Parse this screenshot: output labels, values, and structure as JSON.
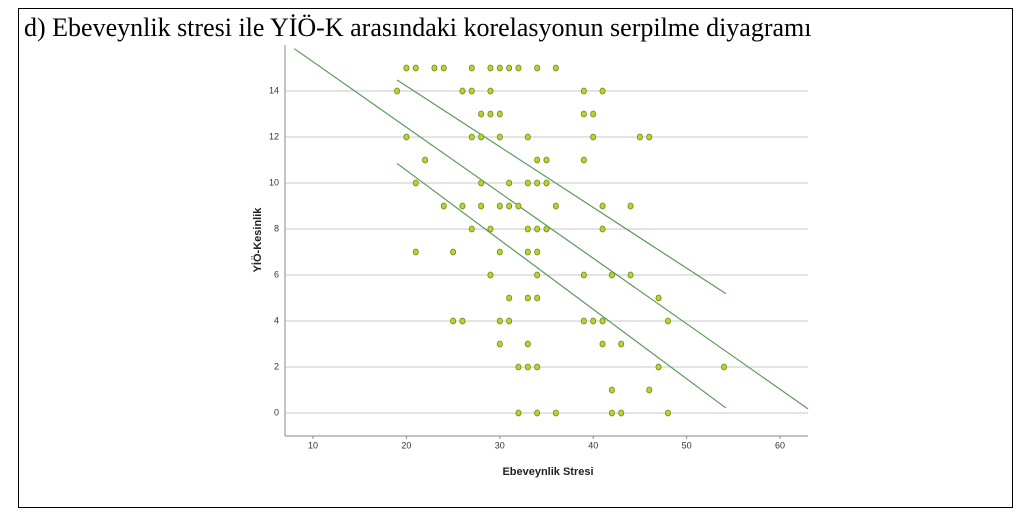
{
  "chart_data": {
    "type": "scatter",
    "title": "d) Ebeveynlik stresi ile YİÖ-K arasındaki korelasyonun serpilme diyagramı",
    "x_label": "Ebeveynlik Stresi",
    "y_label": "YİÖ-Kesinlik",
    "series": [
      {
        "color": "#b5d334",
        "x": [
          20,
          21,
          23,
          24,
          27,
          29,
          30,
          31,
          32,
          34,
          36,
          19,
          26,
          27,
          29,
          39,
          41,
          28,
          29,
          30,
          39,
          40,
          20,
          27,
          28,
          30,
          33,
          40,
          45,
          46,
          22,
          34,
          35,
          39,
          21,
          28,
          31,
          33,
          34,
          35,
          24,
          26,
          28,
          30,
          31,
          32,
          36,
          41,
          44,
          27,
          29,
          33,
          34,
          35,
          41,
          21,
          25,
          30,
          33,
          34,
          29,
          34,
          39,
          42,
          44,
          31,
          33,
          34,
          47,
          25,
          26,
          30,
          31,
          39,
          40,
          41,
          48,
          30,
          33,
          41,
          43,
          32,
          33,
          34,
          47,
          54,
          42,
          46,
          32,
          34,
          36,
          42,
          43,
          48
        ],
        "values": [
          15,
          15,
          15,
          15,
          15,
          15,
          15,
          15,
          15,
          15,
          15,
          14,
          14,
          14,
          14,
          14,
          14,
          13,
          13,
          13,
          13,
          13,
          12,
          12,
          12,
          12,
          12,
          12,
          12,
          12,
          11,
          11,
          11,
          11,
          10,
          10,
          10,
          10,
          10,
          10,
          9,
          9,
          9,
          9,
          9,
          9,
          9,
          9,
          9,
          8,
          8,
          8,
          8,
          8,
          8,
          7,
          7,
          7,
          7,
          7,
          6,
          6,
          6,
          6,
          6,
          5,
          5,
          5,
          5,
          4,
          4,
          4,
          4,
          4,
          4,
          4,
          4,
          3,
          3,
          3,
          3,
          2,
          2,
          2,
          2,
          2,
          1,
          1,
          0,
          0,
          0,
          0,
          0,
          0
        ]
      }
    ],
    "fit_lines": [
      {
        "x": [
          8,
          63
        ],
        "values": [
          15.84,
          0.18
        ]
      },
      {
        "x": [
          19,
          54.2
        ],
        "values": [
          14.48,
          5.19
        ]
      },
      {
        "x": [
          19,
          54.2
        ],
        "values": [
          10.85,
          0.22
        ]
      }
    ],
    "fit_color": "#5a9a5a",
    "xlim": [
      7,
      63
    ],
    "ylim": [
      -1,
      16
    ],
    "xticks": [
      10,
      20,
      30,
      40,
      50,
      60
    ],
    "yticks": [
      0,
      2,
      4,
      6,
      8,
      10,
      12,
      14
    ],
    "grid": true
  }
}
